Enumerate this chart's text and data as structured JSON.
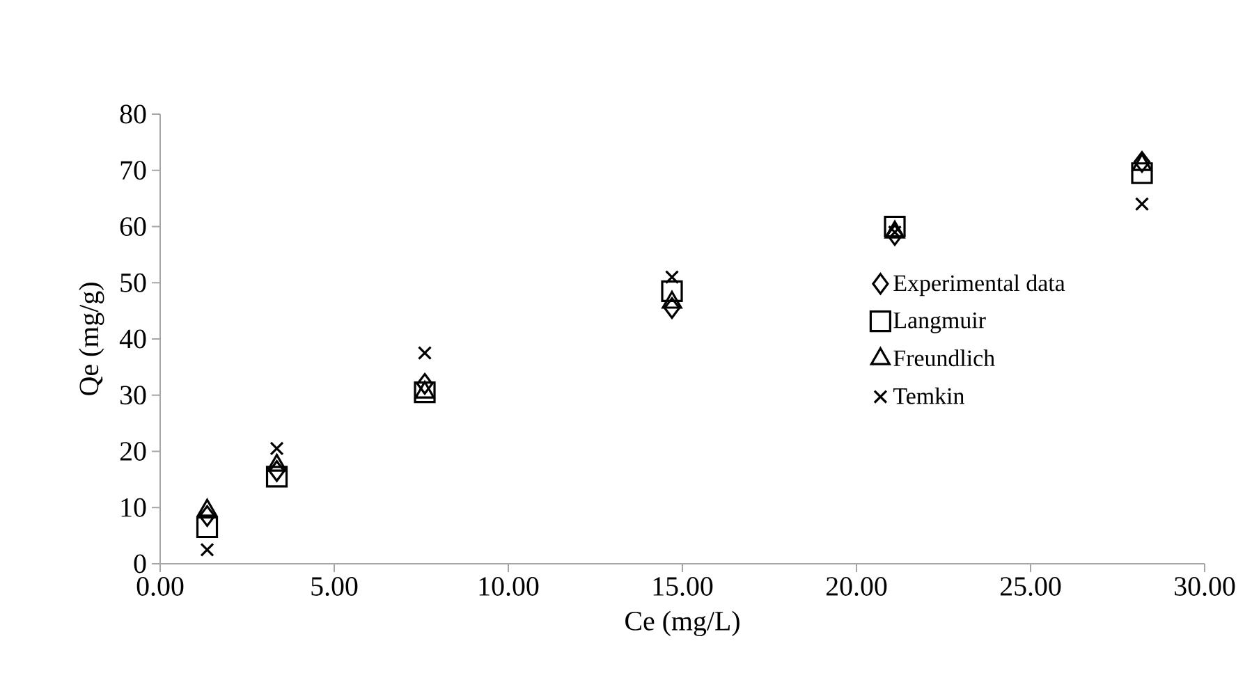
{
  "chart_data": {
    "type": "scatter",
    "xlabel": "Ce (mg/L)",
    "ylabel": "Qe (mg/g)",
    "x": [
      1.35,
      3.35,
      7.6,
      14.7,
      21.1,
      28.2
    ],
    "series": [
      {
        "name": "Experimental data",
        "color": "#000000",
        "marker": "diamond",
        "values": [
          8.5,
          16.5,
          32,
          45.5,
          58.5,
          71.5
        ]
      },
      {
        "name": "Langmuir",
        "color": "#000000",
        "marker": "square",
        "values": [
          6.5,
          15.5,
          30.5,
          48.5,
          60,
          69.5
        ]
      },
      {
        "name": "Freundlich",
        "color": "#000000",
        "marker": "triangle",
        "values": [
          9.5,
          17.5,
          30.5,
          46.5,
          59,
          71
        ]
      },
      {
        "name": "Temkin",
        "color": "#000000",
        "marker": "cross",
        "values": [
          2.5,
          20.5,
          37.5,
          51,
          59,
          64
        ]
      }
    ],
    "xlim": [
      0,
      30
    ],
    "ylim": [
      0,
      80
    ],
    "xticks": [
      {
        "value": 0,
        "label": "0.00"
      },
      {
        "value": 5,
        "label": "5.00"
      },
      {
        "value": 10,
        "label": "10.00"
      },
      {
        "value": 15,
        "label": "15.00"
      },
      {
        "value": 20,
        "label": "20.00"
      },
      {
        "value": 25,
        "label": "25.00"
      },
      {
        "value": 30,
        "label": "30.00"
      }
    ],
    "yticks": [
      0,
      10,
      20,
      30,
      40,
      50,
      60,
      70,
      80
    ],
    "grid": false,
    "legend": "right"
  }
}
